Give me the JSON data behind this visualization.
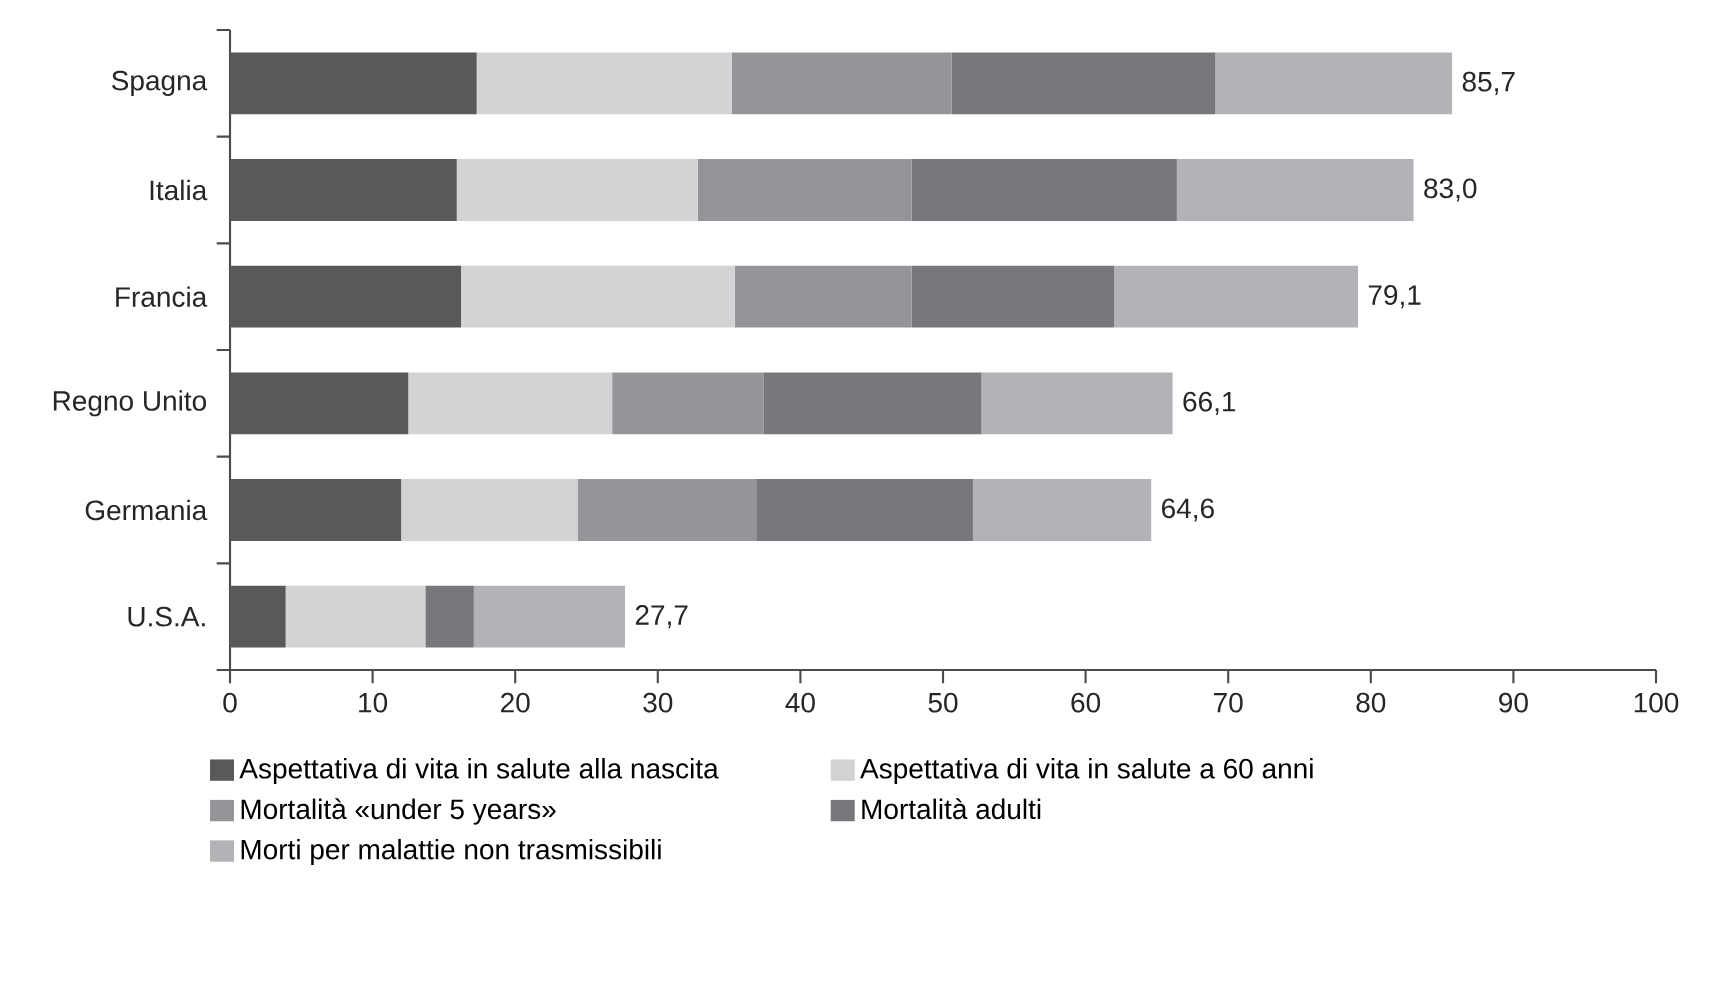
{
  "chart_data": {
    "type": "bar",
    "orientation": "horizontal",
    "stacked": true,
    "categories": [
      "Spagna",
      "Italia",
      "Francia",
      "Regno Unito",
      "Germania",
      "U.S.A."
    ],
    "series": [
      {
        "name": "Aspettativa di vita in salute alla nascita",
        "color": "#58595b",
        "values": [
          17.3,
          15.9,
          16.2,
          12.5,
          12.0,
          3.9
        ]
      },
      {
        "name": "Aspettativa di vita in salute a 60 anni",
        "color": "#d1d3d4",
        "values": [
          17.9,
          16.9,
          19.2,
          14.3,
          12.4,
          9.8
        ]
      },
      {
        "name": "Mortalità «under 5 years»",
        "color": "#939598",
        "values": [
          15.4,
          15.0,
          12.4,
          10.6,
          12.5,
          0
        ]
      },
      {
        "name": "Mortalità adulti",
        "color": "#77787b",
        "values": [
          18.5,
          18.6,
          14.2,
          15.3,
          15.2,
          3.4
        ]
      },
      {
        "name": "Morti per malattie non trasmissibili",
        "color": "#b1b3b6",
        "values": [
          16.6,
          16.6,
          17.1,
          13.4,
          12.5,
          10.6
        ]
      }
    ],
    "totals": [
      "85,7",
      "83,0",
      "79,1",
      "66,1",
      "64,6",
      "27,7"
    ],
    "xlim": [
      0,
      100
    ],
    "xticks": [
      0,
      10,
      20,
      30,
      40,
      50,
      60,
      70,
      80,
      90,
      100
    ],
    "grid": false,
    "legend": "bottom"
  }
}
